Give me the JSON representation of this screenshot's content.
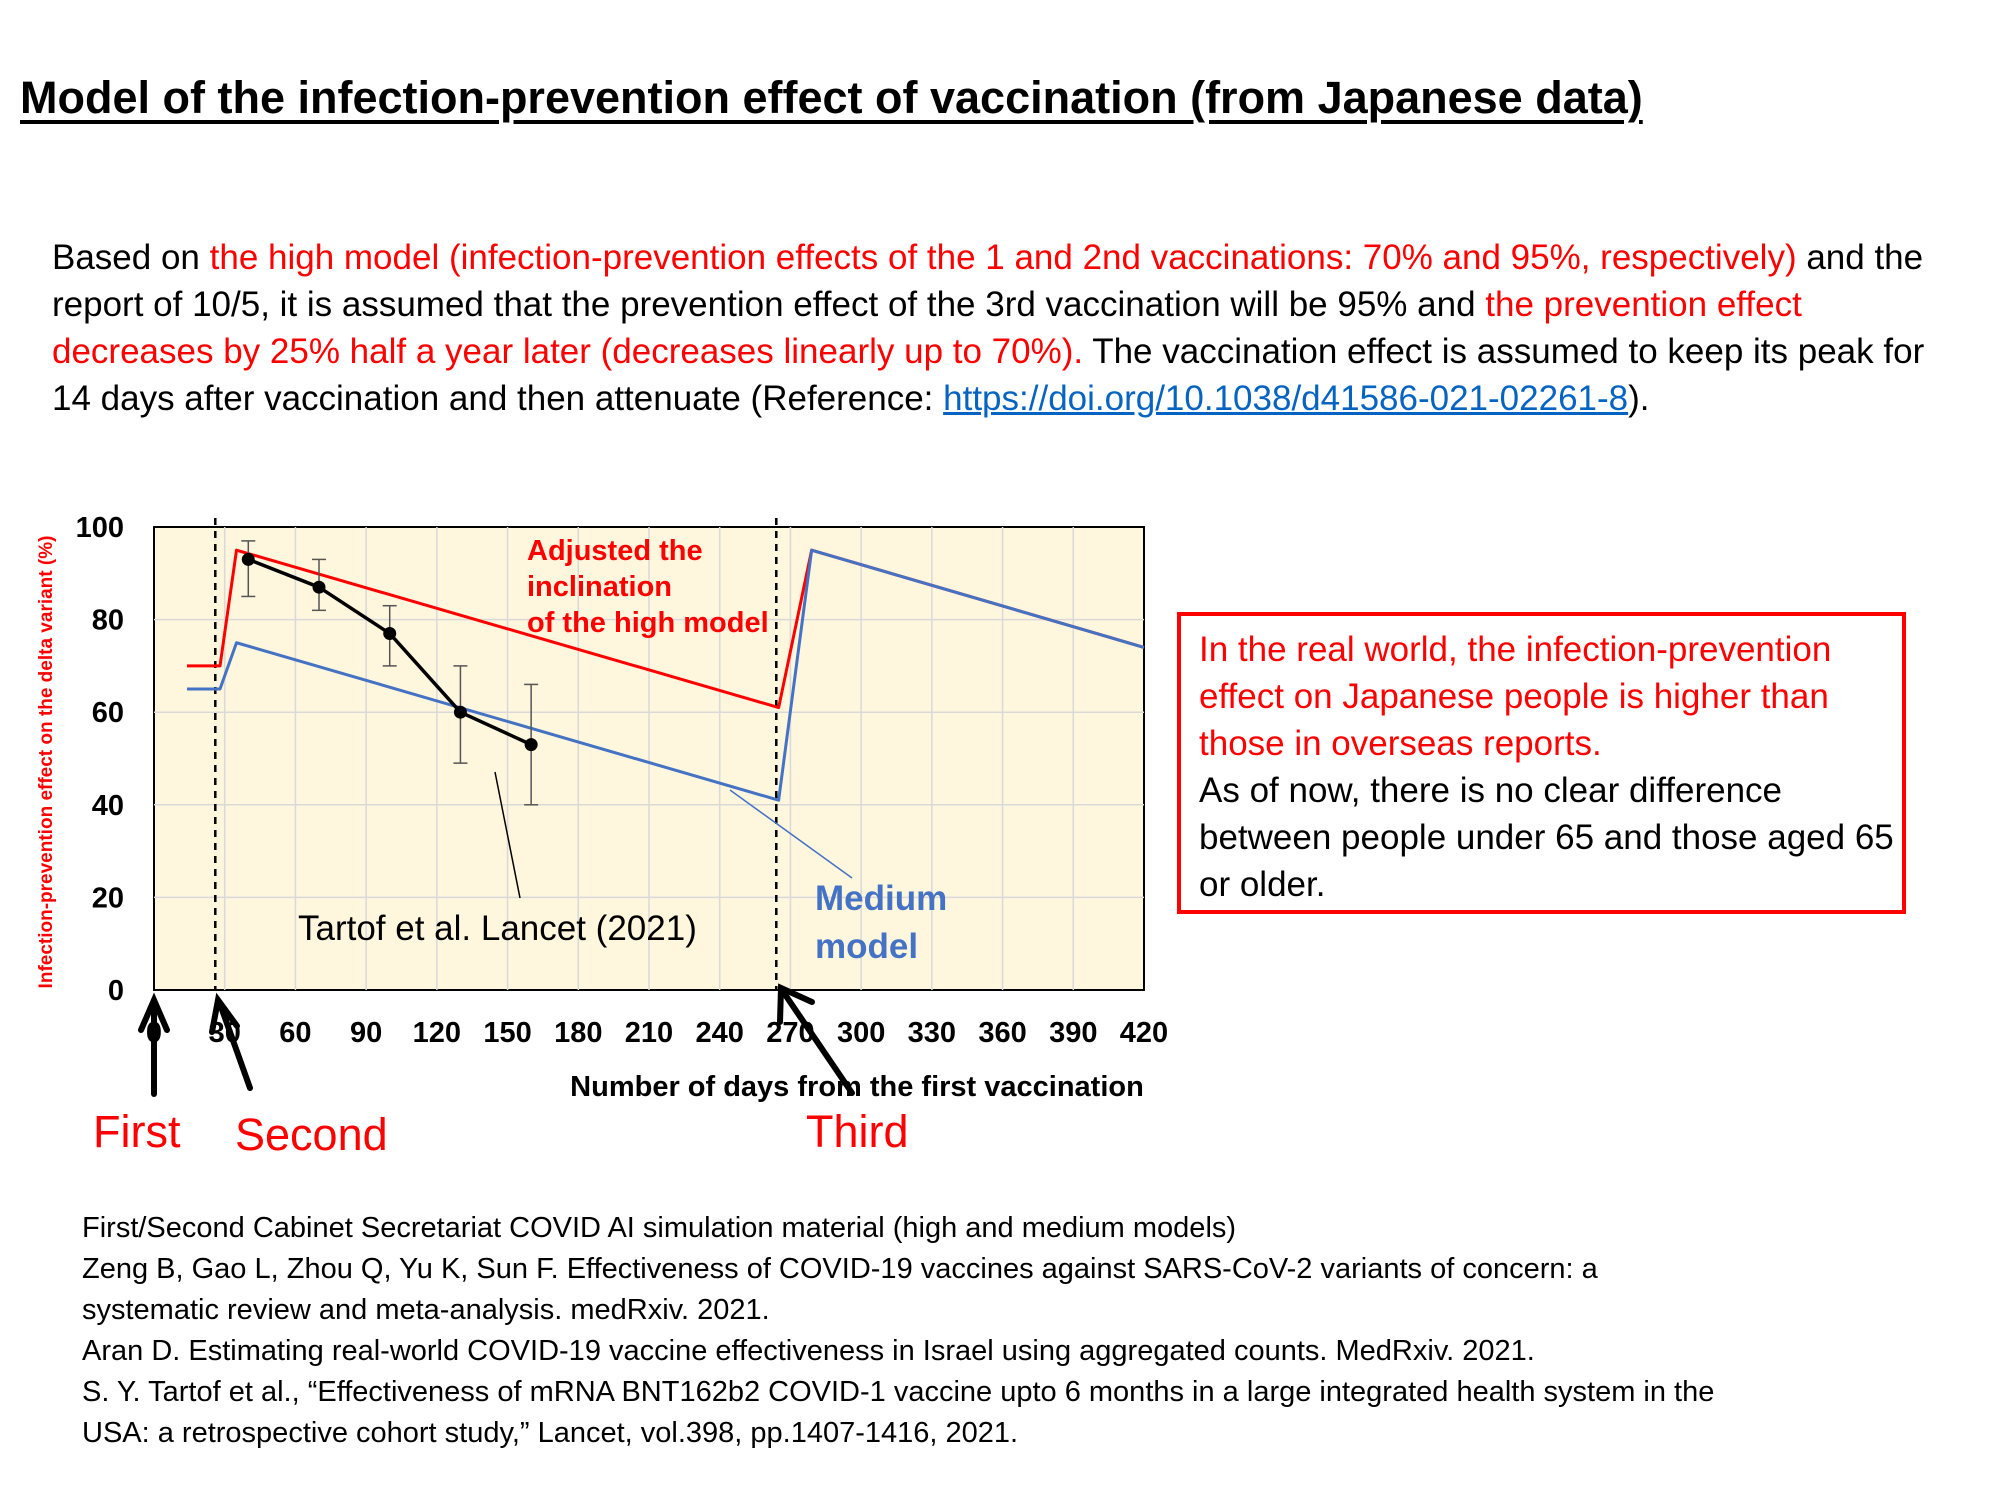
{
  "title": "Model of the infection-prevention effect of vaccination (from Japanese data)",
  "intro": {
    "p1": "Based on ",
    "p2_red": "the high model (infection-prevention effects of the 1 and 2nd vaccinations: 70% and 95%, respectively)",
    "p3": " and the report of 10/5, it is assumed that the prevention effect of the 3rd vaccination will be 95% and ",
    "p4_red": "the prevention effect decreases by 25% half a year later (decreases linearly up to 70%).",
    "p5": " The vaccination effect is assumed to keep its peak for 14 days after vaccination and then attenuate (Reference: ",
    "link": "https://doi.org/10.1038/d41586-021-02261-8",
    "p6": ")."
  },
  "chart_data": {
    "type": "line",
    "xlabel": "Number of days from the first vaccination",
    "ylabel": "Infection-prevention effect on the delta variant (%)",
    "xlim": [
      0,
      420
    ],
    "ylim": [
      0,
      100
    ],
    "xticks": [
      0,
      30,
      60,
      90,
      120,
      150,
      180,
      210,
      240,
      270,
      300,
      330,
      360,
      390,
      420
    ],
    "yticks": [
      0,
      20,
      40,
      60,
      80,
      100
    ],
    "grid": true,
    "series": [
      {
        "name": "Adjusted the inclination of the high model",
        "color": "#ff0000",
        "x": [
          14,
          28,
          35,
          265,
          279,
          420
        ],
        "y": [
          70,
          70,
          95,
          61,
          95,
          74
        ]
      },
      {
        "name": "Medium model",
        "color": "#4472c4",
        "x": [
          14,
          28,
          35,
          265,
          279,
          420
        ],
        "y": [
          65,
          65,
          75,
          41,
          95,
          74
        ]
      },
      {
        "name": "Tartof et al. Lancet (2021)",
        "color": "#000000",
        "x": [
          40,
          70,
          100,
          130,
          160
        ],
        "y": [
          93,
          87,
          77,
          60,
          53
        ],
        "err_low": [
          85,
          82,
          70,
          49,
          40
        ],
        "err_high": [
          97,
          93,
          83,
          70,
          66
        ]
      }
    ],
    "vlines": [
      26,
      264
    ],
    "annotations": {
      "high": [
        "Adjusted the",
        "inclination",
        "of the high model"
      ],
      "medium": [
        "Medium",
        "model"
      ],
      "tartof": "Tartof et al. Lancet (2021)"
    },
    "doses": [
      "First",
      "Second",
      "Third"
    ]
  },
  "callout": {
    "red": "In the real world, the infection-prevention effect on Japanese people is higher than those in overseas reports.",
    "black": "As of now, there is no clear difference between people under 65 and those aged 65 or older."
  },
  "references": [
    "First/Second Cabinet Secretariat COVID AI simulation material (high and medium models)",
    "Zeng B, Gao L, Zhou Q, Yu K, Sun F. Effectiveness of COVID-19 vaccines against SARS-CoV-2 variants of concern: a",
    "systematic review and meta-analysis. medRxiv. 2021.",
    "Aran D. Estimating real-world COVID-19 vaccine effectiveness in Israel using aggregated counts. MedRxiv. 2021.",
    "S. Y. Tartof et al., “Effectiveness of mRNA BNT162b2 COVID-1 vaccine upto 6 months in a large integrated health system in the",
    "USA: a retrospective cohort study,” Lancet, vol.398, pp.1407-1416, 2021."
  ]
}
